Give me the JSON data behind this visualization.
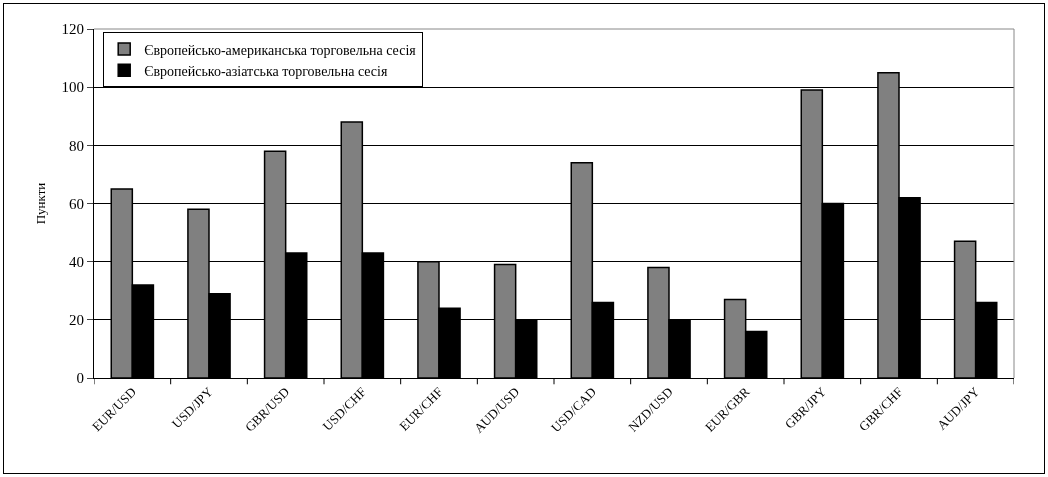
{
  "chart_data": {
    "type": "bar",
    "ylabel": "Пункти",
    "categories": [
      "EUR/USD",
      "USD/JPY",
      "GBR/USD",
      "USD/CHF",
      "EUR/CHF",
      "AUD/USD",
      "USD/CAD",
      "NZD/USD",
      "EUR/GBR",
      "GBR/JPY",
      "GBR/CHF",
      "AUD/JPY"
    ],
    "series": [
      {
        "name": "Європейсько-американська торговельна сесія",
        "color": "#808080",
        "values": [
          65,
          58,
          78,
          88,
          40,
          39,
          74,
          38,
          27,
          99,
          105,
          47
        ]
      },
      {
        "name": "Європейсько-азіатська торговельна сесія",
        "color": "#000000",
        "values": [
          32,
          29,
          43,
          43,
          24,
          20,
          26,
          20,
          16,
          60,
          62,
          26
        ]
      }
    ],
    "ylim": [
      0,
      120
    ],
    "yticks": [
      0,
      20,
      40,
      60,
      80,
      100,
      120
    ],
    "grid": "y",
    "legend": "top left"
  }
}
